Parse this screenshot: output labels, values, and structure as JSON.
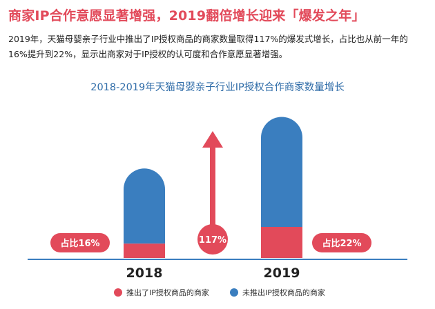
{
  "headline": "商家IP合作意愿显著增强，2019翻倍增长迎来「爆发之年」",
  "description": "2019年，天猫母婴亲子行业中推出了IP授权商品的商家数量取得117%的爆发式增长，占比也从前一年的16%提升到22%，显示出商家对于IP授权的认可度和合作意愿显著增强。",
  "colors": {
    "accent": "#e24a5a",
    "blue": "#3a7ebf",
    "title_blue": "#2f6ca8",
    "axis": "#3a7ebf"
  },
  "chart_data": {
    "type": "bar",
    "stacked": true,
    "title": "2018-2019年天猫母婴亲子行业IP授权合作商家数量增长",
    "categories": [
      "2018",
      "2019"
    ],
    "series": [
      {
        "name": "推出了IP授权商品的商家",
        "color": "#e24a5a",
        "values": [
          16,
          34.7
        ]
      },
      {
        "name": "未推出IP授权商品的商家",
        "color": "#3a7ebf",
        "values": [
          84,
          123
        ]
      }
    ],
    "share_labels": [
      "占比16%",
      "占比22%"
    ],
    "growth_label": "117%",
    "ylim": [
      0,
      165
    ],
    "legend_position": "bottom"
  }
}
